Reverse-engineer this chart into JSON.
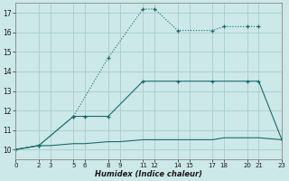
{
  "xlabel": "Humidex (Indice chaleur)",
  "bg_color": "#cce8e8",
  "grid_color": "#aacccc",
  "line_color": "#1a6b6b",
  "xlim": [
    0,
    23
  ],
  "ylim": [
    9.5,
    17.5
  ],
  "xticks": [
    0,
    2,
    3,
    5,
    6,
    8,
    9,
    11,
    12,
    14,
    15,
    17,
    18,
    20,
    21,
    23
  ],
  "xtick_labels": [
    "0",
    "2",
    "3",
    "5",
    "6",
    "8",
    "9",
    "11",
    "12",
    "14",
    "15",
    "17",
    "18",
    "20",
    "21",
    "23"
  ],
  "yticks": [
    10,
    11,
    12,
    13,
    14,
    15,
    16,
    17
  ],
  "line1_x": [
    0,
    2,
    5,
    8,
    11,
    12,
    14,
    17,
    18,
    20,
    21
  ],
  "line1_y": [
    10.0,
    10.2,
    11.7,
    14.7,
    17.2,
    17.2,
    16.1,
    16.1,
    16.3,
    16.3,
    16.3
  ],
  "line2_x": [
    0,
    2,
    5,
    6,
    8,
    11,
    14,
    17,
    20,
    21,
    23
  ],
  "line2_y": [
    10.0,
    10.2,
    11.7,
    11.7,
    11.7,
    13.5,
    13.5,
    13.5,
    13.5,
    13.5,
    10.5
  ],
  "line3_x": [
    0,
    2,
    3,
    5,
    6,
    8,
    9,
    11,
    12,
    14,
    15,
    17,
    18,
    20,
    21,
    23
  ],
  "line3_y": [
    10.0,
    10.2,
    10.2,
    10.3,
    10.3,
    10.4,
    10.4,
    10.5,
    10.5,
    10.5,
    10.5,
    10.5,
    10.6,
    10.6,
    10.6,
    10.5
  ],
  "marker_line1_x": [
    0,
    2,
    5,
    8,
    11,
    12,
    14,
    17,
    18,
    20,
    21
  ],
  "marker_line1_y": [
    10.0,
    10.2,
    11.7,
    14.7,
    17.2,
    17.2,
    16.1,
    16.1,
    16.3,
    16.3,
    16.3
  ],
  "marker_line2_x": [
    0,
    2,
    5,
    8,
    11,
    14,
    20,
    21,
    23
  ],
  "marker_line2_y": [
    10.0,
    10.2,
    11.7,
    11.7,
    13.5,
    13.5,
    13.5,
    13.5,
    10.5
  ]
}
